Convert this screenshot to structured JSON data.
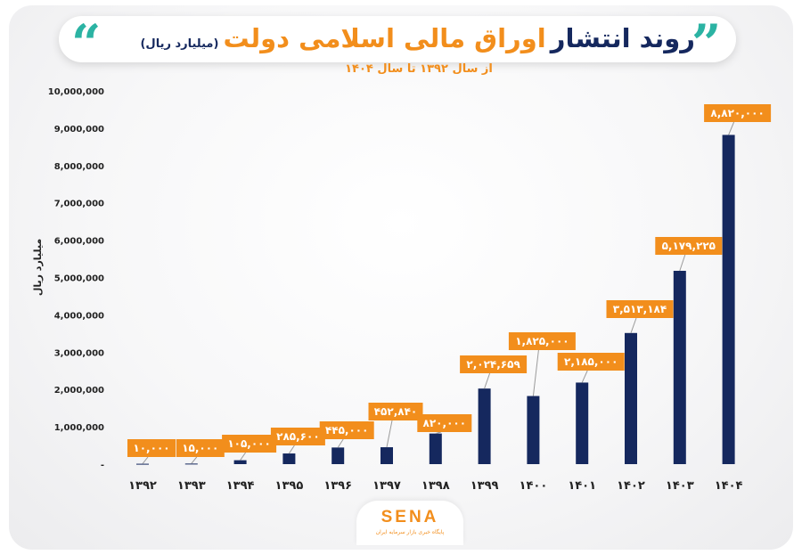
{
  "header": {
    "title_part1": "روند انتشار",
    "title_part2": "اوراق مالی اسلامی دولت",
    "unit": "(میلیارد ریال)",
    "subtitle": "از سال ۱۳۹۲ تا سال ۱۴۰۴",
    "quote_open": "“",
    "quote_close": "”"
  },
  "logo": {
    "name": "SENA",
    "tagline": "پایگاه خبری بازار سرمایه ایران"
  },
  "colors": {
    "bar": "#15285e",
    "label_bg": "#f28e1c",
    "accent": "#2bb3a3",
    "axis_text": "#222222"
  },
  "chart_data": {
    "type": "bar",
    "title": "روند انتشار اوراق مالی اسلامی دولت (میلیارد ریال)",
    "ylabel": "میلیارد ریال",
    "xlabel": "",
    "ylim": [
      0,
      10000000
    ],
    "grid": false,
    "categories": [
      "۱۳۹۲",
      "۱۳۹۳",
      "۱۳۹۴",
      "۱۳۹۵",
      "۱۳۹۶",
      "۱۳۹۷",
      "۱۳۹۸",
      "۱۳۹۹",
      "۱۴۰۰",
      "۱۴۰۱",
      "۱۴۰۲",
      "۱۴۰۳",
      "۱۴۰۴"
    ],
    "values": [
      10000,
      15000,
      105000,
      285600,
      445000,
      452840,
      820000,
      2024659,
      1825000,
      2185000,
      3513184,
      5179225,
      8820000
    ],
    "value_labels": [
      "۱۰,۰۰۰",
      "۱۵,۰۰۰",
      "۱۰۵,۰۰۰",
      "۲۸۵,۶۰۰",
      "۴۴۵,۰۰۰",
      "۴۵۲,۸۴۰",
      "۸۲۰,۰۰۰",
      "۲,۰۲۴,۶۵۹",
      "۱,۸۲۵,۰۰۰",
      "۲,۱۸۵,۰۰۰",
      "۳,۵۱۳,۱۸۴",
      "۵,۱۷۹,۲۲۵",
      "۸,۸۲۰,۰۰۰"
    ],
    "y_ticks": [
      "-",
      "1,000,000",
      "2,000,000",
      "3,000,000",
      "4,000,000",
      "5,000,000",
      "6,000,000",
      "7,000,000",
      "8,000,000",
      "9,000,000",
      "10,000,000"
    ]
  }
}
